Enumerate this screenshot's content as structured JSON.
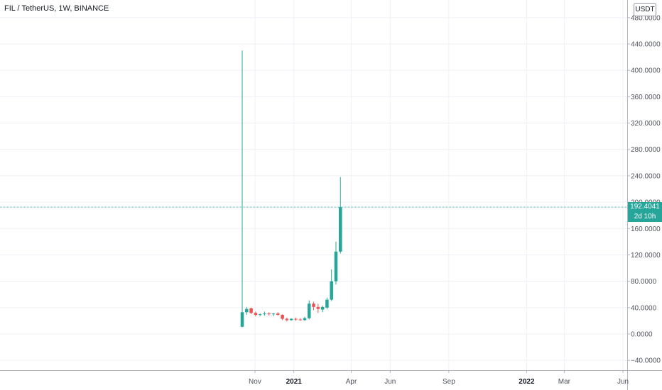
{
  "legend": {
    "title": "FIL / TetherUS, 1W, BINANCE"
  },
  "currency": "USDT",
  "last_price": {
    "value": "192.4041",
    "countdown": "2d 10h"
  },
  "colors": {
    "up": "#26a69a",
    "down": "#ef5350",
    "grid": "#eef1f6",
    "axis_text": "#50535e",
    "price_line": "#26a69a"
  },
  "chart_data": {
    "type": "candlestick",
    "title": "FIL / TetherUS, 1W, BINANCE",
    "y_ticks": [
      -40,
      0,
      40,
      80,
      120,
      160,
      200,
      240,
      280,
      320,
      360,
      400,
      440,
      480
    ],
    "y_tick_labels": [
      "−40.0000",
      "0.0000",
      "40.0000",
      "80.0000",
      "120.0000",
      "160.0000",
      "200.0000",
      "240.0000",
      "280.0000",
      "320.0000",
      "360.0000",
      "400.0000",
      "440.0000",
      "480.0000"
    ],
    "x_ticks": [
      {
        "label": "Nov",
        "date": "2020-11-01"
      },
      {
        "label": "2021",
        "date": "2021-01-01",
        "bold": true
      },
      {
        "label": "Apr",
        "date": "2021-04-01"
      },
      {
        "label": "Jun",
        "date": "2021-06-01"
      },
      {
        "label": "Sep",
        "date": "2021-09-01"
      },
      {
        "label": "2022",
        "date": "2022-01-01",
        "bold": true
      },
      {
        "label": "Mar",
        "date": "2022-03-01"
      },
      {
        "label": "Jun",
        "date": "2022-06-01"
      }
    ],
    "candles": [
      {
        "date": "2020-10-12",
        "open": 11,
        "high": 430,
        "low": 10,
        "close": 33
      },
      {
        "date": "2020-10-19",
        "open": 33,
        "high": 41,
        "low": 29,
        "close": 38
      },
      {
        "date": "2020-10-26",
        "open": 39,
        "high": 40,
        "low": 30,
        "close": 32
      },
      {
        "date": "2020-11-02",
        "open": 32,
        "high": 34,
        "low": 27,
        "close": 29
      },
      {
        "date": "2020-11-09",
        "open": 29,
        "high": 31,
        "low": 27,
        "close": 30
      },
      {
        "date": "2020-11-16",
        "open": 30,
        "high": 34,
        "low": 28,
        "close": 31
      },
      {
        "date": "2020-11-23",
        "open": 31,
        "high": 33,
        "low": 28,
        "close": 30
      },
      {
        "date": "2020-11-30",
        "open": 30,
        "high": 32,
        "low": 27,
        "close": 31
      },
      {
        "date": "2020-12-07",
        "open": 31,
        "high": 33,
        "low": 28,
        "close": 29
      },
      {
        "date": "2020-12-14",
        "open": 29,
        "high": 30,
        "low": 21,
        "close": 23
      },
      {
        "date": "2020-12-21",
        "open": 23,
        "high": 25,
        "low": 19,
        "close": 21
      },
      {
        "date": "2020-12-28",
        "open": 21,
        "high": 24,
        "low": 20,
        "close": 23
      },
      {
        "date": "2021-01-04",
        "open": 23,
        "high": 25,
        "low": 20,
        "close": 22
      },
      {
        "date": "2021-01-11",
        "open": 22,
        "high": 24,
        "low": 20,
        "close": 21
      },
      {
        "date": "2021-01-18",
        "open": 21,
        "high": 26,
        "low": 20,
        "close": 24
      },
      {
        "date": "2021-01-25",
        "open": 24,
        "high": 51,
        "low": 22,
        "close": 46
      },
      {
        "date": "2021-02-01",
        "open": 46,
        "high": 49,
        "low": 36,
        "close": 41
      },
      {
        "date": "2021-02-08",
        "open": 41,
        "high": 46,
        "low": 32,
        "close": 38
      },
      {
        "date": "2021-02-15",
        "open": 37,
        "high": 43,
        "low": 33,
        "close": 41
      },
      {
        "date": "2021-02-22",
        "open": 40,
        "high": 55,
        "low": 38,
        "close": 52
      },
      {
        "date": "2021-03-01",
        "open": 52,
        "high": 98,
        "low": 50,
        "close": 80
      },
      {
        "date": "2021-03-08",
        "open": 80,
        "high": 140,
        "low": 75,
        "close": 125
      },
      {
        "date": "2021-03-15",
        "open": 125,
        "high": 238,
        "low": 122,
        "close": 192.4
      }
    ]
  }
}
